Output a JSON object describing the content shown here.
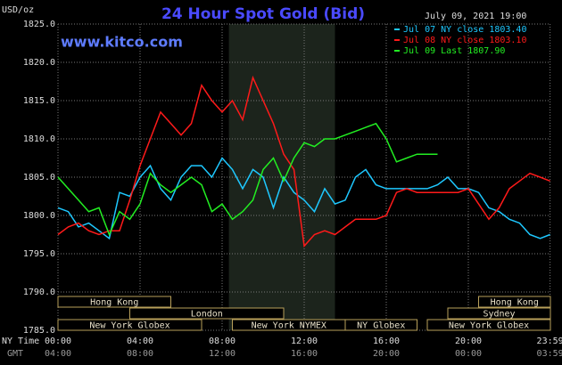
{
  "chart_data": {
    "type": "line",
    "title": "24 Hour Spot Gold (Bid)",
    "site": "www.kitco.com",
    "date": "July 09, 2021 19:00",
    "y_label": "USD/oz",
    "x_label": "NY Time",
    "x2_label": "GMT",
    "xlim": [
      0,
      24
    ],
    "ylim": [
      1785,
      1825
    ],
    "yticks": [
      {
        "value": 1785,
        "label": "1785.0"
      },
      {
        "value": 1790,
        "label": "1790.0"
      },
      {
        "value": 1795,
        "label": "1795.0"
      },
      {
        "value": 1800,
        "label": "1800.0"
      },
      {
        "value": 1805,
        "label": "1805.0"
      },
      {
        "value": 1810,
        "label": "1810.0"
      },
      {
        "value": 1815,
        "label": "1815.0"
      },
      {
        "value": 1820,
        "label": "1820.0"
      },
      {
        "value": 1825,
        "label": "1825.0"
      }
    ],
    "xticks": [
      {
        "value": 0,
        "label": "00:00"
      },
      {
        "value": 4,
        "label": "04:00"
      },
      {
        "value": 8,
        "label": "08:00"
      },
      {
        "value": 12,
        "label": "12:00"
      },
      {
        "value": 16,
        "label": "16:00"
      },
      {
        "value": 20,
        "label": "20:00"
      },
      {
        "value": 23.983,
        "label": "23:59"
      }
    ],
    "x2ticks": [
      {
        "value": 0,
        "label": "04:00"
      },
      {
        "value": 4,
        "label": "08:00"
      },
      {
        "value": 8,
        "label": "12:00"
      },
      {
        "value": 12,
        "label": "16:00"
      },
      {
        "value": 16,
        "label": "20:00"
      },
      {
        "value": 20,
        "label": "00:00"
      },
      {
        "value": 23.983,
        "label": "03:59"
      }
    ],
    "grid": true,
    "shaded_range": [
      8.33,
      13.5
    ],
    "sessions": [
      {
        "label": "Hong Kong",
        "start": 0,
        "end": 5.5,
        "row": 1
      },
      {
        "label": "Hong Kong",
        "start": 20.5,
        "end": 24,
        "row": 1
      },
      {
        "label": "London",
        "start": 3.5,
        "end": 11,
        "row": 2
      },
      {
        "label": "Sydney",
        "start": 19,
        "end": 24,
        "row": 2
      },
      {
        "label": "New York Globex",
        "start": 0,
        "end": 7,
        "row": 3
      },
      {
        "label": "New York NYMEX",
        "start": 8.5,
        "end": 14,
        "row": 3
      },
      {
        "label": "NY Globex",
        "start": 14,
        "end": 17.5,
        "row": 3
      },
      {
        "label": "New York Globex",
        "start": 18,
        "end": 24,
        "row": 3
      }
    ],
    "x": [
      0,
      0.5,
      1,
      1.5,
      2,
      2.5,
      3,
      3.5,
      4,
      4.5,
      5,
      5.5,
      6,
      6.5,
      7,
      7.5,
      8,
      8.5,
      9,
      9.5,
      10,
      10.5,
      11,
      11.5,
      12,
      12.5,
      13,
      13.5,
      14,
      14.5,
      15,
      15.5,
      16,
      16.5,
      17,
      17.5,
      18,
      18.5,
      19,
      19.5,
      20,
      20.5,
      21,
      21.5,
      22,
      22.5,
      23,
      23.5,
      23.983
    ],
    "series": [
      {
        "name": "Jul 07 NY close 1803.40",
        "color": "#1ec8ff",
        "values": [
          1801,
          1800.5,
          1798.5,
          1799,
          1798,
          1797,
          1803,
          1802.5,
          1805,
          1806.5,
          1803.5,
          1802,
          1805,
          1806.5,
          1806.5,
          1805,
          1807.5,
          1806,
          1803.5,
          1806,
          1805,
          1801,
          1805,
          1803,
          1802,
          1800.5,
          1803.5,
          1801.5,
          1802,
          1805,
          1806,
          1804,
          1803.5,
          1803.5,
          1803.5,
          1803.5,
          1803.5,
          1804,
          1805,
          1803.5,
          1803.5,
          1803,
          1801,
          1800.5,
          1799.5,
          1799,
          1797.5,
          1797,
          1797.5
        ]
      },
      {
        "name": "Jul 08 NY close 1803.10",
        "color": "#ff1a1a",
        "values": [
          1797.5,
          1798.5,
          1799,
          1798,
          1797.5,
          1798,
          1798,
          1802,
          1806.5,
          1810,
          1813.5,
          1812,
          1810.5,
          1812,
          1817,
          1815,
          1813.5,
          1815,
          1812.5,
          1818,
          1815,
          1812,
          1808,
          1806,
          1796,
          1797.5,
          1798,
          1797.5,
          1798.5,
          1799.5,
          1799.5,
          1799.5,
          1800,
          1803,
          1803.5,
          1803,
          1803,
          1803,
          1803,
          1803,
          1803.5,
          1801.5,
          1799.5,
          1801,
          1803.5,
          1804.5,
          1805.5,
          1805,
          1804.5
        ]
      },
      {
        "name": "Jul 09 Last 1807.90",
        "color": "#22ee22",
        "values": [
          1805,
          1803.5,
          1802,
          1800.5,
          1801,
          1797.5,
          1800.5,
          1799.5,
          1801.5,
          1805.5,
          1804,
          1803,
          1804,
          1805,
          1804,
          1800.5,
          1801.5,
          1799.5,
          1800.5,
          1802,
          1806,
          1807.5,
          1804.5,
          1807.5,
          1809.5,
          1809,
          1810,
          1810,
          1810.5,
          1811,
          1811.5,
          1812,
          1810,
          1807,
          1807.5,
          1808,
          1808,
          1808,
          null,
          null,
          null,
          null,
          null,
          null,
          null,
          null,
          null,
          null,
          null
        ]
      }
    ]
  }
}
